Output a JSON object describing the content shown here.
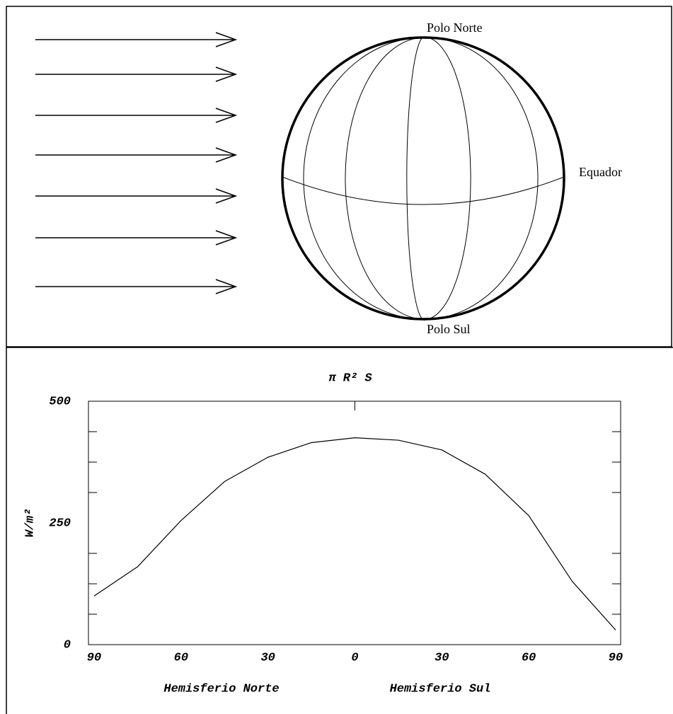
{
  "diagram": {
    "north_label": "Polo Norte",
    "south_label": "Polo Sul",
    "equator_label": "Equador"
  },
  "chart_data": {
    "type": "line",
    "title": "π R² S",
    "ylabel": "W/m²",
    "xlabel_left": "Hemisferio Norte",
    "xlabel_right": "Hemisferio Sul",
    "x": [
      -90,
      -75,
      -60,
      -45,
      -30,
      -15,
      0,
      15,
      30,
      45,
      60,
      75,
      90
    ],
    "values": [
      100,
      160,
      255,
      335,
      385,
      415,
      425,
      420,
      400,
      350,
      265,
      130,
      30
    ],
    "color": "#000000",
    "xlim": [
      -90,
      90
    ],
    "xticks": [
      {
        "value": -90,
        "label": "90"
      },
      {
        "value": -60,
        "label": "60"
      },
      {
        "value": -30,
        "label": "30"
      },
      0,
      30,
      60,
      90
    ],
    "ylim": [
      0,
      500
    ],
    "yticks": [
      0,
      250,
      500
    ],
    "minor_yticks": [
      62.5,
      125,
      187.5,
      312.5,
      375,
      437.5
    ],
    "top_xticks": [
      0
    ]
  }
}
